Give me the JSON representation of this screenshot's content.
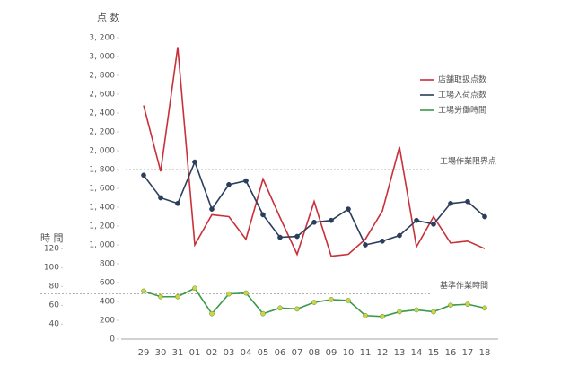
{
  "chart_data": {
    "type": "line",
    "y_label": "点 数",
    "y2_label": "時 間",
    "categories": [
      "29",
      "30",
      "31",
      "01",
      "02",
      "03",
      "04",
      "05",
      "06",
      "07",
      "08",
      "09",
      "10",
      "11",
      "12",
      "13",
      "14",
      "15",
      "16",
      "17",
      "18"
    ],
    "series": [
      {
        "name": "店舗取扱点数",
        "color": "#c8303a",
        "values": [
          2480,
          1780,
          3100,
          1000,
          1320,
          1300,
          1060,
          1700,
          1290,
          900,
          1460,
          880,
          900,
          1060,
          1360,
          2040,
          980,
          1300,
          1020,
          1040,
          960
        ]
      },
      {
        "name": "工場入荷点数",
        "color": "#2b3e5c",
        "marker_color": "#2b3e5c",
        "values": [
          1740,
          1500,
          1440,
          1880,
          1380,
          1640,
          1680,
          1320,
          1080,
          1090,
          1240,
          1260,
          1380,
          1000,
          1040,
          1100,
          1260,
          1220,
          1440,
          1460,
          1300
        ]
      },
      {
        "name": "工場労働時間",
        "color": "#3a9a4a",
        "marker_color": "#d8d040",
        "axis": "y2",
        "values": [
          75,
          69,
          69,
          78,
          51,
          72,
          73,
          51,
          57,
          56,
          63,
          66,
          65,
          49,
          48,
          53,
          55,
          53,
          60,
          61,
          57
        ]
      }
    ],
    "ylim": [
      0,
      3200
    ],
    "yticks": [
      0,
      200,
      400,
      600,
      800,
      {
        "value": 1000,
        "label": "1, 000"
      },
      {
        "value": 1200,
        "label": "1, 200"
      },
      {
        "value": 1400,
        "label": "1, 400"
      },
      {
        "value": 1600,
        "label": "1, 600"
      },
      {
        "value": 1800,
        "label": "1, 800"
      },
      {
        "value": 2000,
        "label": "2, 000"
      },
      {
        "value": 2200,
        "label": "2, 200"
      },
      {
        "value": 2400,
        "label": "2, 400"
      },
      {
        "value": 2600,
        "label": "2, 600"
      },
      {
        "value": 2800,
        "label": "2, 800"
      },
      {
        "value": 3000,
        "label": "3, 000"
      },
      {
        "value": 3200,
        "label": "3, 200"
      }
    ],
    "y2lim": [
      24,
      344
    ],
    "y2ticks": [
      40,
      60,
      80,
      100,
      120
    ],
    "annotations": [
      {
        "label": "工場作業限界点",
        "value": 1800
      },
      {
        "label": "基準作業時間",
        "value": 72,
        "axis": "y2"
      }
    ],
    "legend": "upper right"
  }
}
